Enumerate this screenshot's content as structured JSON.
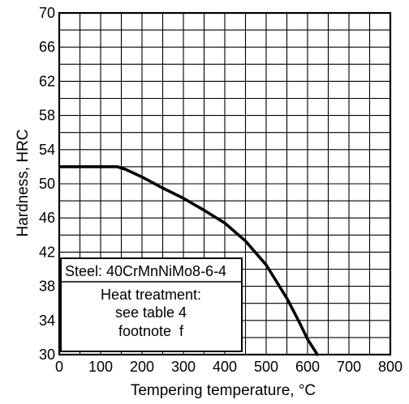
{
  "chart_data": {
    "type": "line",
    "title": "",
    "xlabel": "Tempering temperature, °C",
    "ylabel": "Hardness, HRC",
    "xlim": [
      0,
      800
    ],
    "ylim": [
      30,
      70
    ],
    "grid": true,
    "x_major_ticks": [
      0,
      100,
      200,
      300,
      400,
      500,
      600,
      700,
      800
    ],
    "y_major_ticks": [
      30,
      34,
      38,
      42,
      46,
      50,
      54,
      58,
      62,
      66,
      70
    ],
    "x_tick_labels": [
      "0",
      "100",
      "200",
      "300",
      "400",
      "500",
      "600",
      "700",
      "800"
    ],
    "y_tick_labels": [
      "30",
      "34",
      "38",
      "42",
      "46",
      "50",
      "54",
      "58",
      "62",
      "66",
      "70"
    ],
    "series": [
      {
        "x": [
          0,
          100,
          140,
          160,
          200,
          250,
          300,
          350,
          400,
          450,
          500,
          550,
          580,
          600,
          625
        ],
        "y": [
          52,
          52,
          52,
          51.7,
          50.8,
          49.5,
          48.3,
          46.9,
          45.4,
          43.3,
          40.5,
          36.6,
          33.8,
          31.8,
          29.9
        ]
      }
    ],
    "annotation": {
      "steel": "Steel: 40CrMnNiMo8-6-4",
      "lines": [
        "Heat treatment:",
        "see table 4",
        "footnote  f"
      ]
    }
  }
}
